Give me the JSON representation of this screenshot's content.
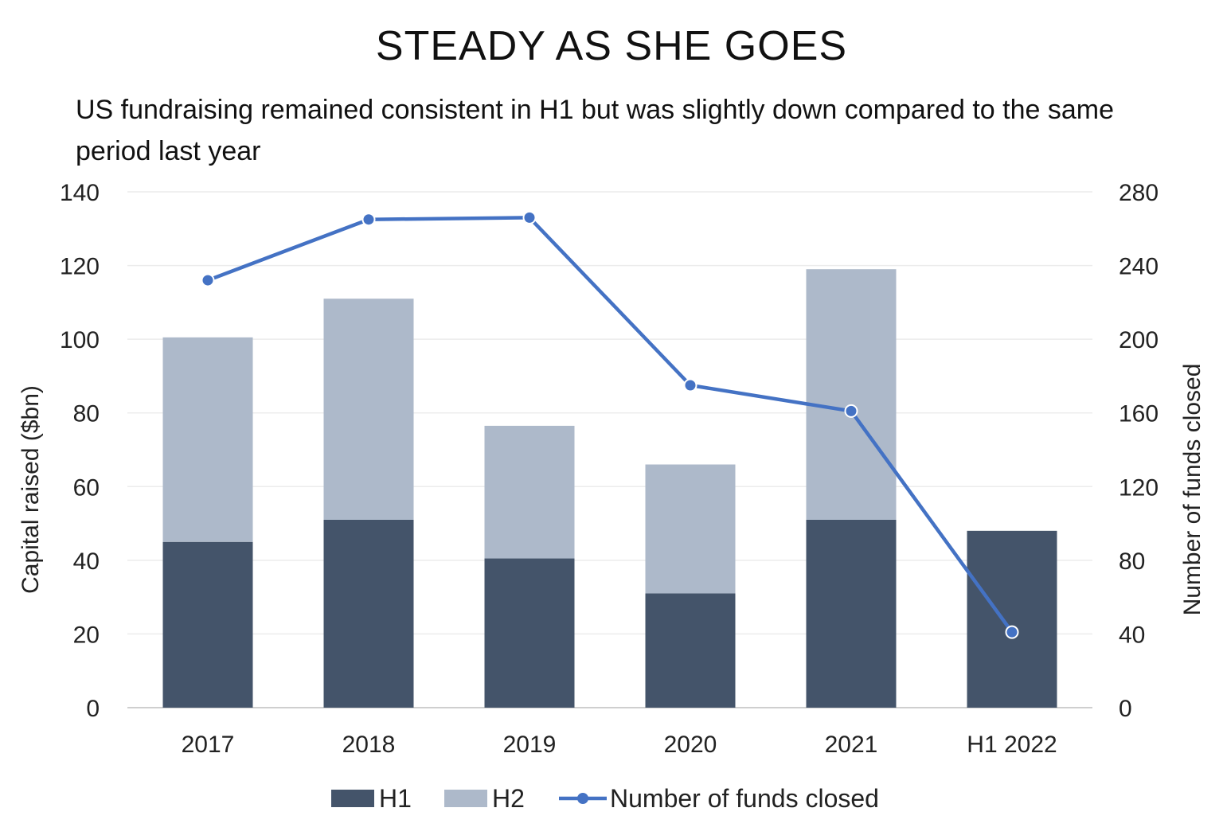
{
  "chart_data": {
    "type": "bar",
    "title": "STEADY AS SHE GOES",
    "subtitle": "US fundraising remained consistent in H1 but was slightly down compared to the same period last year",
    "categories": [
      "2017",
      "2018",
      "2019",
      "2020",
      "2021",
      "H1 2022"
    ],
    "series": [
      {
        "name": "H1",
        "type": "bar",
        "axis": "left",
        "color": "#44546a",
        "values": [
          45,
          51,
          40.5,
          31,
          51,
          48
        ]
      },
      {
        "name": "H2",
        "type": "bar",
        "axis": "left",
        "color": "#adb9ca",
        "values": [
          55.5,
          60,
          36,
          35,
          68,
          null
        ]
      },
      {
        "name": "Number of funds closed",
        "type": "line",
        "axis": "right",
        "color": "#4472c4",
        "values": [
          232,
          265,
          266,
          175,
          161,
          41
        ]
      }
    ],
    "stacked": true,
    "ylabel": "Capital raised ($bn)",
    "y2label": "Number of funds closed",
    "ylim": [
      0,
      140
    ],
    "y2lim": [
      0,
      280
    ],
    "yticks": [
      "0",
      "20",
      "40",
      "60",
      "80",
      "100",
      "120",
      "140"
    ],
    "y2ticks": [
      "0",
      "40",
      "80",
      "120",
      "160",
      "200",
      "240",
      "280"
    ],
    "grid": true,
    "legend": "bottom-center"
  }
}
